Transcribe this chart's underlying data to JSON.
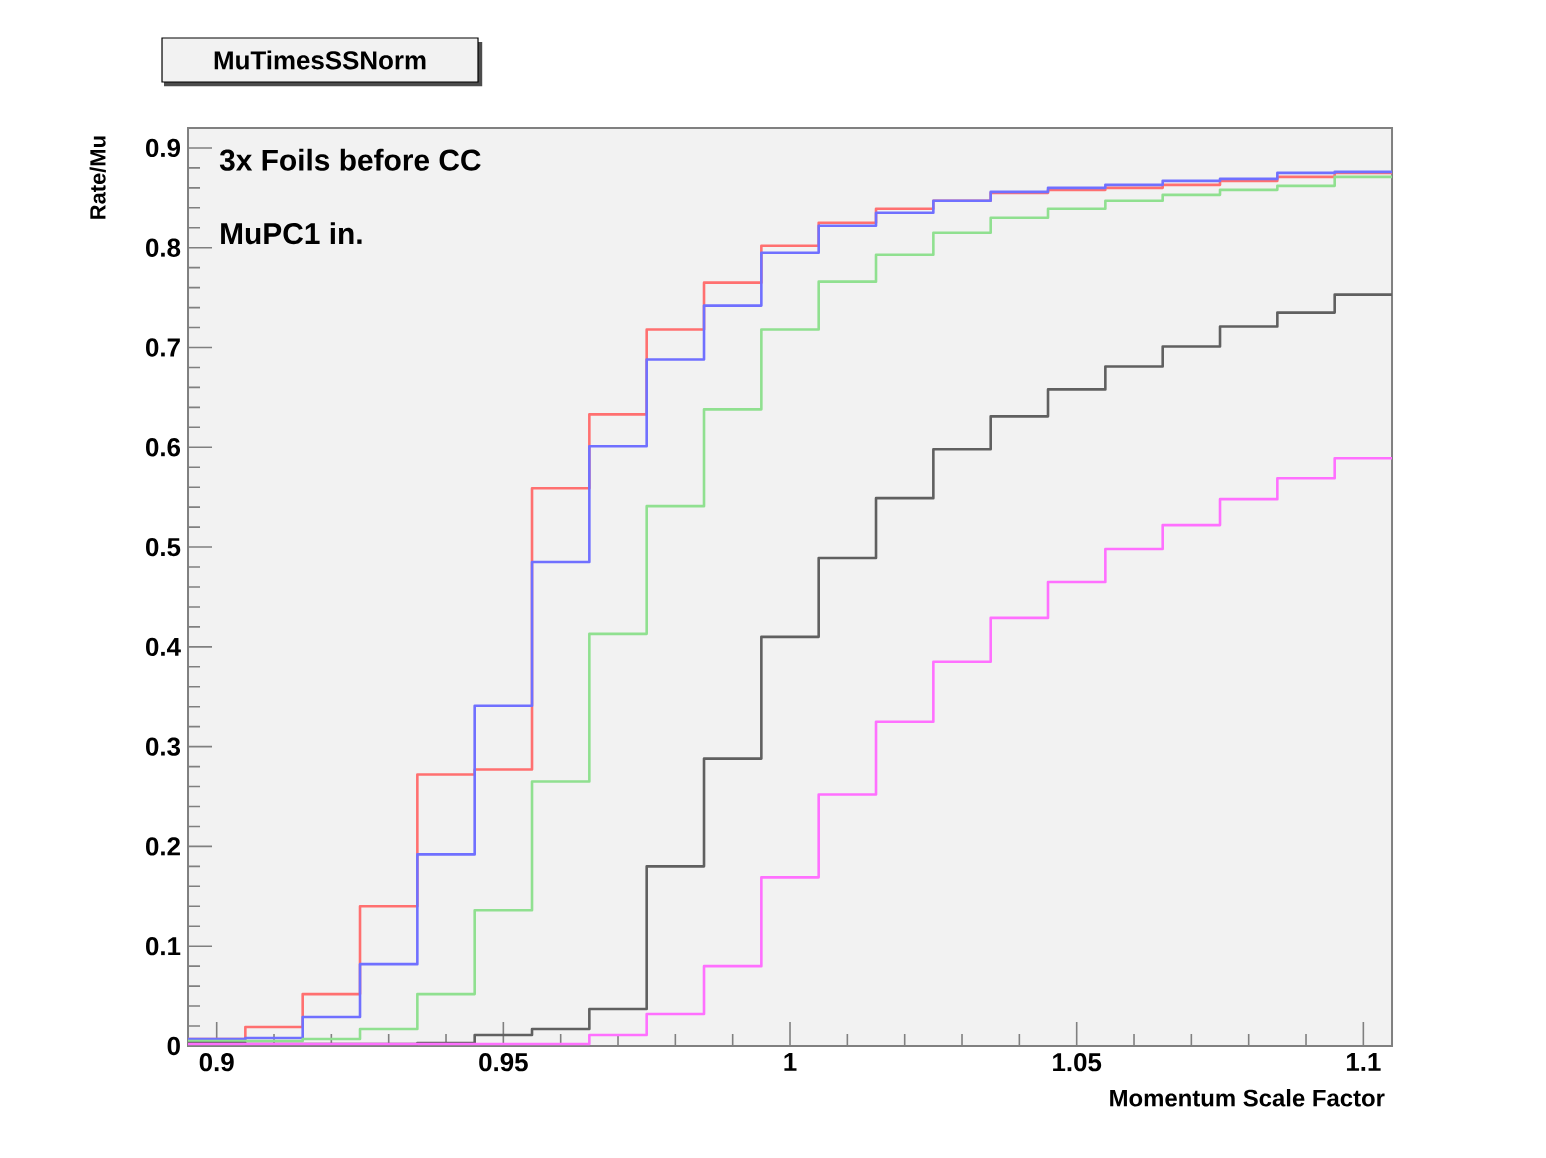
{
  "chart_data": {
    "type": "step",
    "title": "MuTimesSSNorm",
    "xlabel": "Momentum Scale Factor",
    "ylabel": "Rate/Mu",
    "annotations": [
      "3x Foils before CC",
      "MuPC1 in."
    ],
    "x": [
      0.895,
      0.905,
      0.915,
      0.925,
      0.935,
      0.945,
      0.955,
      0.965,
      0.975,
      0.985,
      0.995,
      1.005,
      1.015,
      1.025,
      1.035,
      1.045,
      1.055,
      1.065,
      1.075,
      1.085,
      1.095,
      1.105
    ],
    "xlim": [
      0.895,
      1.105
    ],
    "ylim": [
      0,
      0.92
    ],
    "xticks": [
      0.9,
      0.95,
      1,
      1.05,
      1.1
    ],
    "yticks": [
      0,
      0.1,
      0.2,
      0.3,
      0.4,
      0.5,
      0.6,
      0.7,
      0.8,
      0.9
    ],
    "series": [
      {
        "color": "#ff7070",
        "values": [
          0.007,
          0.019,
          0.052,
          0.14,
          0.272,
          0.277,
          0.559,
          0.633,
          0.718,
          0.765,
          0.802,
          0.825,
          0.839,
          0.847,
          0.855,
          0.858,
          0.86,
          0.863,
          0.867,
          0.871,
          0.875,
          0.875
        ]
      },
      {
        "color": "#7070ff",
        "values": [
          0.007,
          0.008,
          0.029,
          0.082,
          0.192,
          0.341,
          0.485,
          0.601,
          0.688,
          0.742,
          0.795,
          0.822,
          0.835,
          0.847,
          0.856,
          0.86,
          0.863,
          0.867,
          0.869,
          0.875,
          0.876,
          0.876
        ]
      },
      {
        "color": "#90e090",
        "values": [
          0.005,
          0.005,
          0.007,
          0.017,
          0.052,
          0.136,
          0.265,
          0.413,
          0.541,
          0.638,
          0.718,
          0.766,
          0.793,
          0.815,
          0.83,
          0.839,
          0.847,
          0.853,
          0.858,
          0.862,
          0.871,
          0.871
        ]
      },
      {
        "color": "#606060",
        "values": [
          0.003,
          0.002,
          0.002,
          0.002,
          0.003,
          0.011,
          0.017,
          0.037,
          0.18,
          0.288,
          0.41,
          0.489,
          0.549,
          0.598,
          0.631,
          0.658,
          0.681,
          0.701,
          0.721,
          0.735,
          0.753,
          0.753
        ]
      },
      {
        "color": "#ff70ff",
        "values": [
          0.002,
          0.002,
          0.002,
          0.002,
          0.002,
          0.002,
          0.002,
          0.011,
          0.032,
          0.08,
          0.169,
          0.252,
          0.325,
          0.385,
          0.429,
          0.465,
          0.498,
          0.522,
          0.548,
          0.569,
          0.589,
          0.589
        ]
      }
    ]
  }
}
